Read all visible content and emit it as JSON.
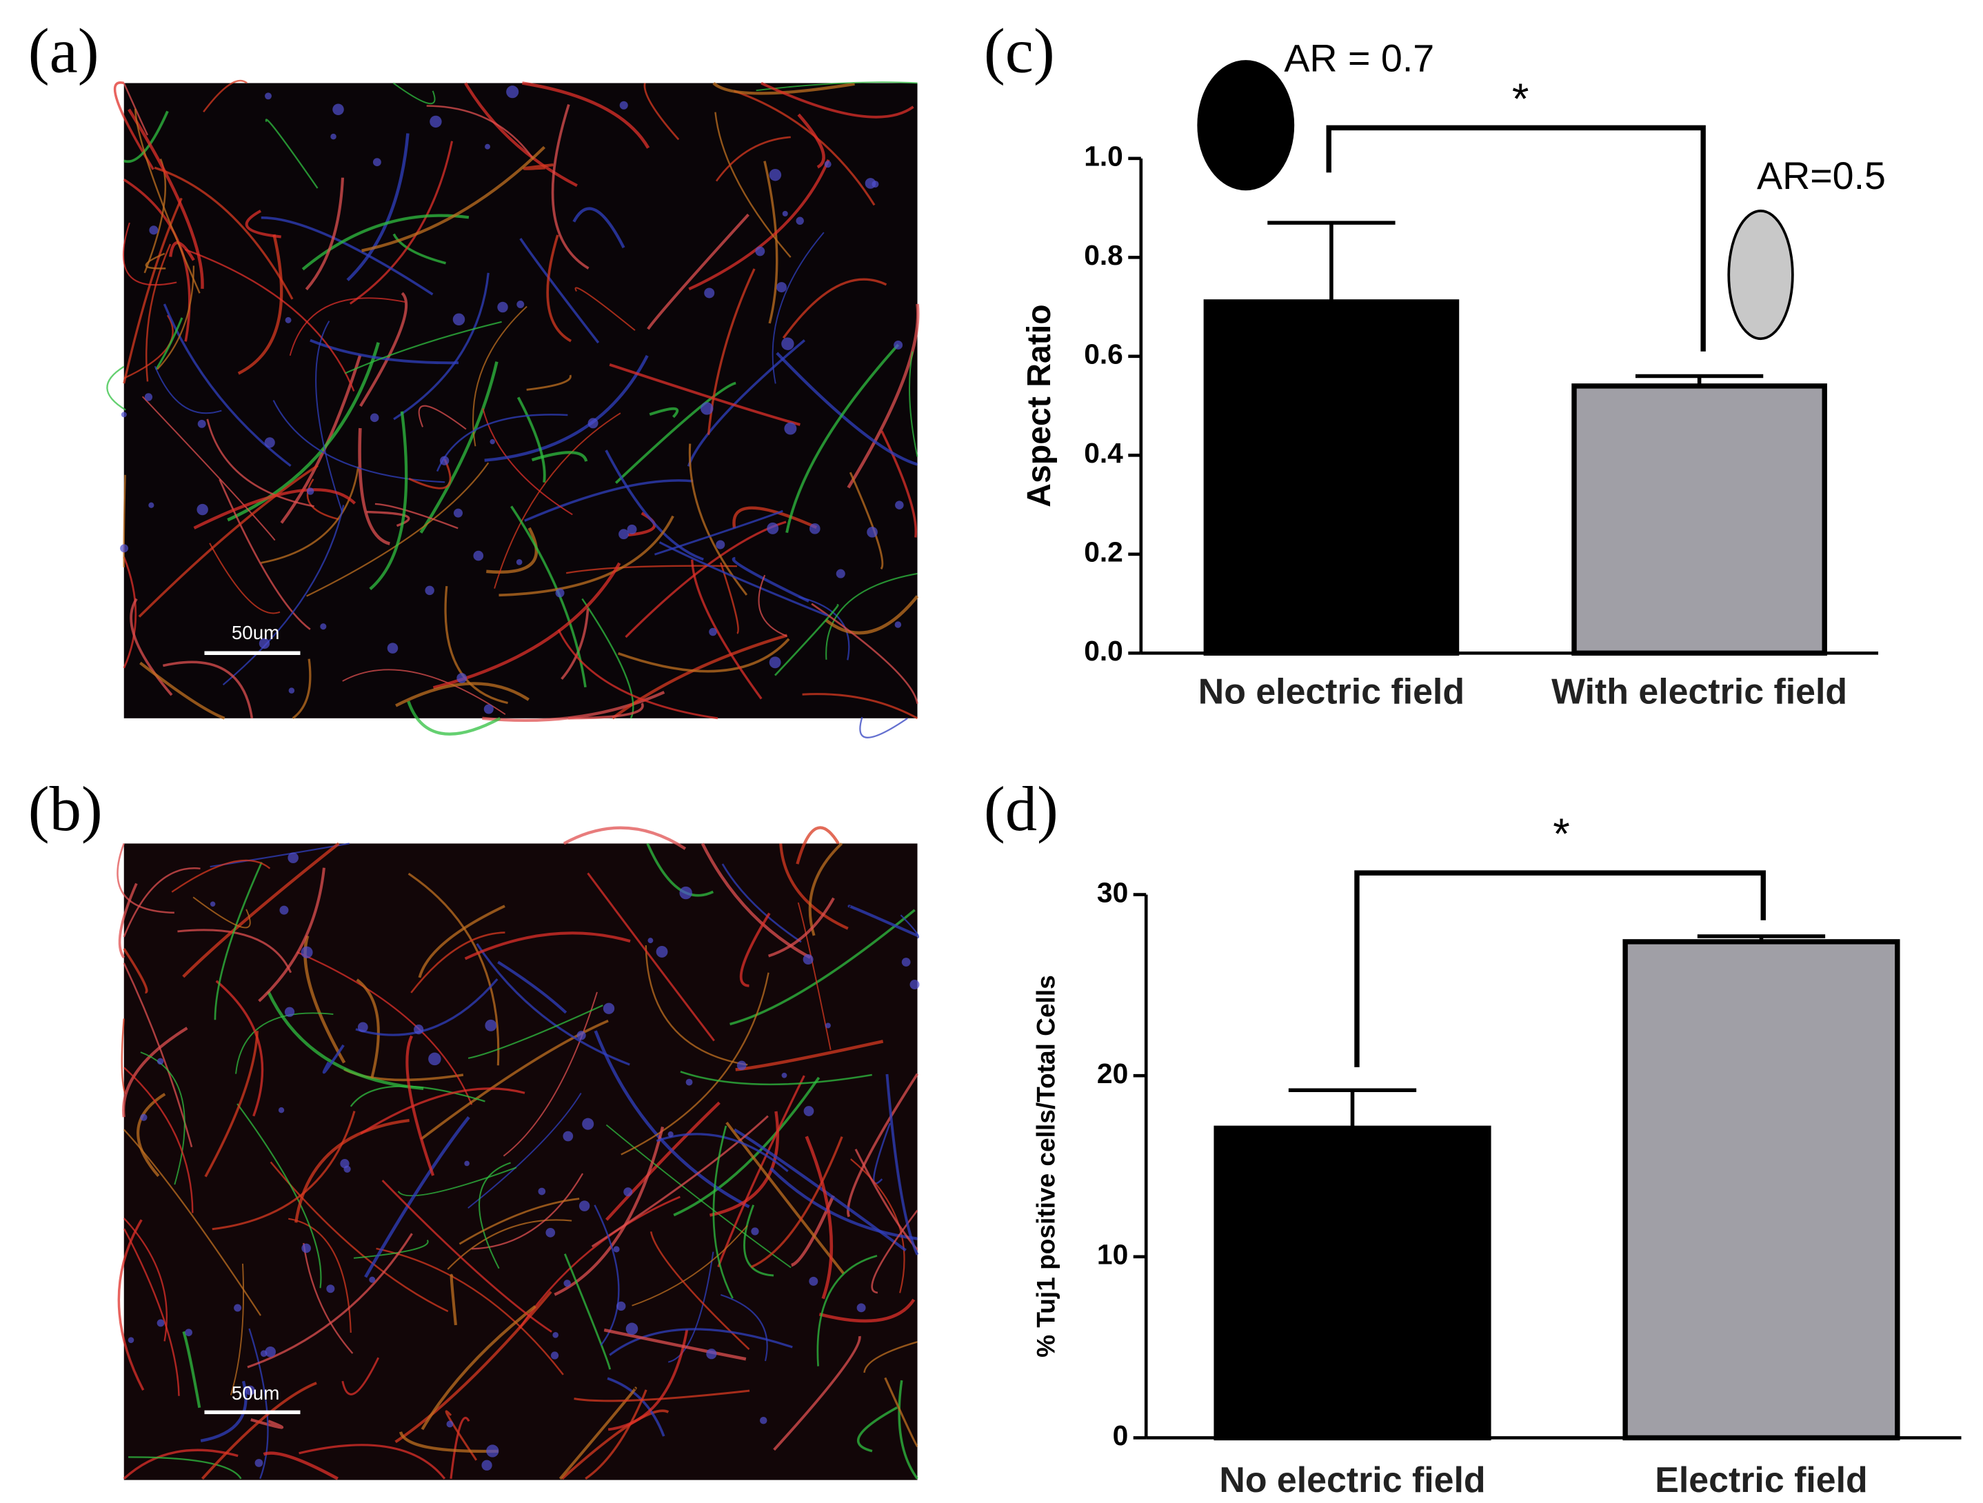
{
  "panels": [
    {
      "label": "(a)",
      "scale_bar": "50um"
    },
    {
      "label": "(b)",
      "scale_bar": "50um"
    }
  ],
  "chart_data": [
    {
      "type": "bar",
      "label": "(c)",
      "ylabel": "Aspect Ratio",
      "categories": [
        "No electric field",
        "With electric field"
      ],
      "values": [
        0.71,
        0.54
      ],
      "errors": [
        0.16,
        0.02
      ],
      "colors": [
        "#000000",
        "#a09fa6"
      ],
      "ylim": [
        0,
        1.0
      ],
      "yticks": [
        {
          "value": 0,
          "label": "0.0"
        },
        0.2,
        0.4,
        0.6,
        0.8,
        {
          "value": 1.0,
          "label": "1.0"
        }
      ],
      "annotations": [
        "AR = 0.7",
        "AR=0.5",
        "*"
      ]
    },
    {
      "type": "bar",
      "label": "(d)",
      "ylabel": "% Tuj1 positive cells/Total Cells",
      "categories": [
        "No electric field",
        "Electric field"
      ],
      "values": [
        17.1,
        27.4
      ],
      "errors": [
        2.1,
        0.3
      ],
      "colors": [
        "#000000",
        "#a09fa6"
      ],
      "ylim": [
        0,
        30
      ],
      "yticks": [
        0,
        10,
        20,
        30
      ],
      "annotations": [
        "*"
      ]
    }
  ]
}
